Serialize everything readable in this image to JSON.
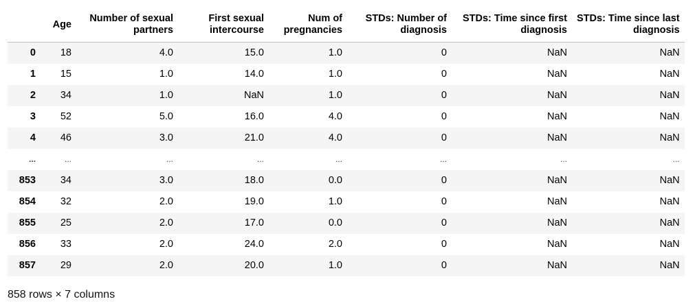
{
  "table": {
    "index_header": "",
    "columns": [
      {
        "key": "age",
        "lines": [
          "Age"
        ]
      },
      {
        "key": "partners",
        "lines": [
          "Number of sexual",
          "partners"
        ]
      },
      {
        "key": "first_intercourse",
        "lines": [
          "First sexual",
          "intercourse"
        ]
      },
      {
        "key": "pregnancies",
        "lines": [
          "Num of",
          "pregnancies"
        ]
      },
      {
        "key": "std_diag",
        "lines": [
          "STDs: Number of",
          "diagnosis"
        ]
      },
      {
        "key": "std_first",
        "lines": [
          "STDs: Time since first",
          "diagnosis"
        ]
      },
      {
        "key": "std_last",
        "lines": [
          "STDs: Time since last",
          "diagnosis"
        ]
      }
    ],
    "rows": [
      {
        "index": "0",
        "cells": [
          "18",
          "4.0",
          "15.0",
          "1.0",
          "0",
          "NaN",
          "NaN"
        ]
      },
      {
        "index": "1",
        "cells": [
          "15",
          "1.0",
          "14.0",
          "1.0",
          "0",
          "NaN",
          "NaN"
        ]
      },
      {
        "index": "2",
        "cells": [
          "34",
          "1.0",
          "NaN",
          "1.0",
          "0",
          "NaN",
          "NaN"
        ]
      },
      {
        "index": "3",
        "cells": [
          "52",
          "5.0",
          "16.0",
          "4.0",
          "0",
          "NaN",
          "NaN"
        ]
      },
      {
        "index": "4",
        "cells": [
          "46",
          "3.0",
          "21.0",
          "4.0",
          "0",
          "NaN",
          "NaN"
        ]
      },
      {
        "index": "...",
        "cells": [
          "...",
          "...",
          "...",
          "...",
          "...",
          "...",
          "..."
        ],
        "ellipsis": true
      },
      {
        "index": "853",
        "cells": [
          "34",
          "3.0",
          "18.0",
          "0.0",
          "0",
          "NaN",
          "NaN"
        ]
      },
      {
        "index": "854",
        "cells": [
          "32",
          "2.0",
          "19.0",
          "1.0",
          "0",
          "NaN",
          "NaN"
        ]
      },
      {
        "index": "855",
        "cells": [
          "25",
          "2.0",
          "17.0",
          "0.0",
          "0",
          "NaN",
          "NaN"
        ]
      },
      {
        "index": "856",
        "cells": [
          "33",
          "2.0",
          "24.0",
          "2.0",
          "0",
          "NaN",
          "NaN"
        ]
      },
      {
        "index": "857",
        "cells": [
          "29",
          "2.0",
          "20.0",
          "1.0",
          "0",
          "NaN",
          "NaN"
        ]
      }
    ]
  },
  "summary": "858 rows × 7 columns"
}
